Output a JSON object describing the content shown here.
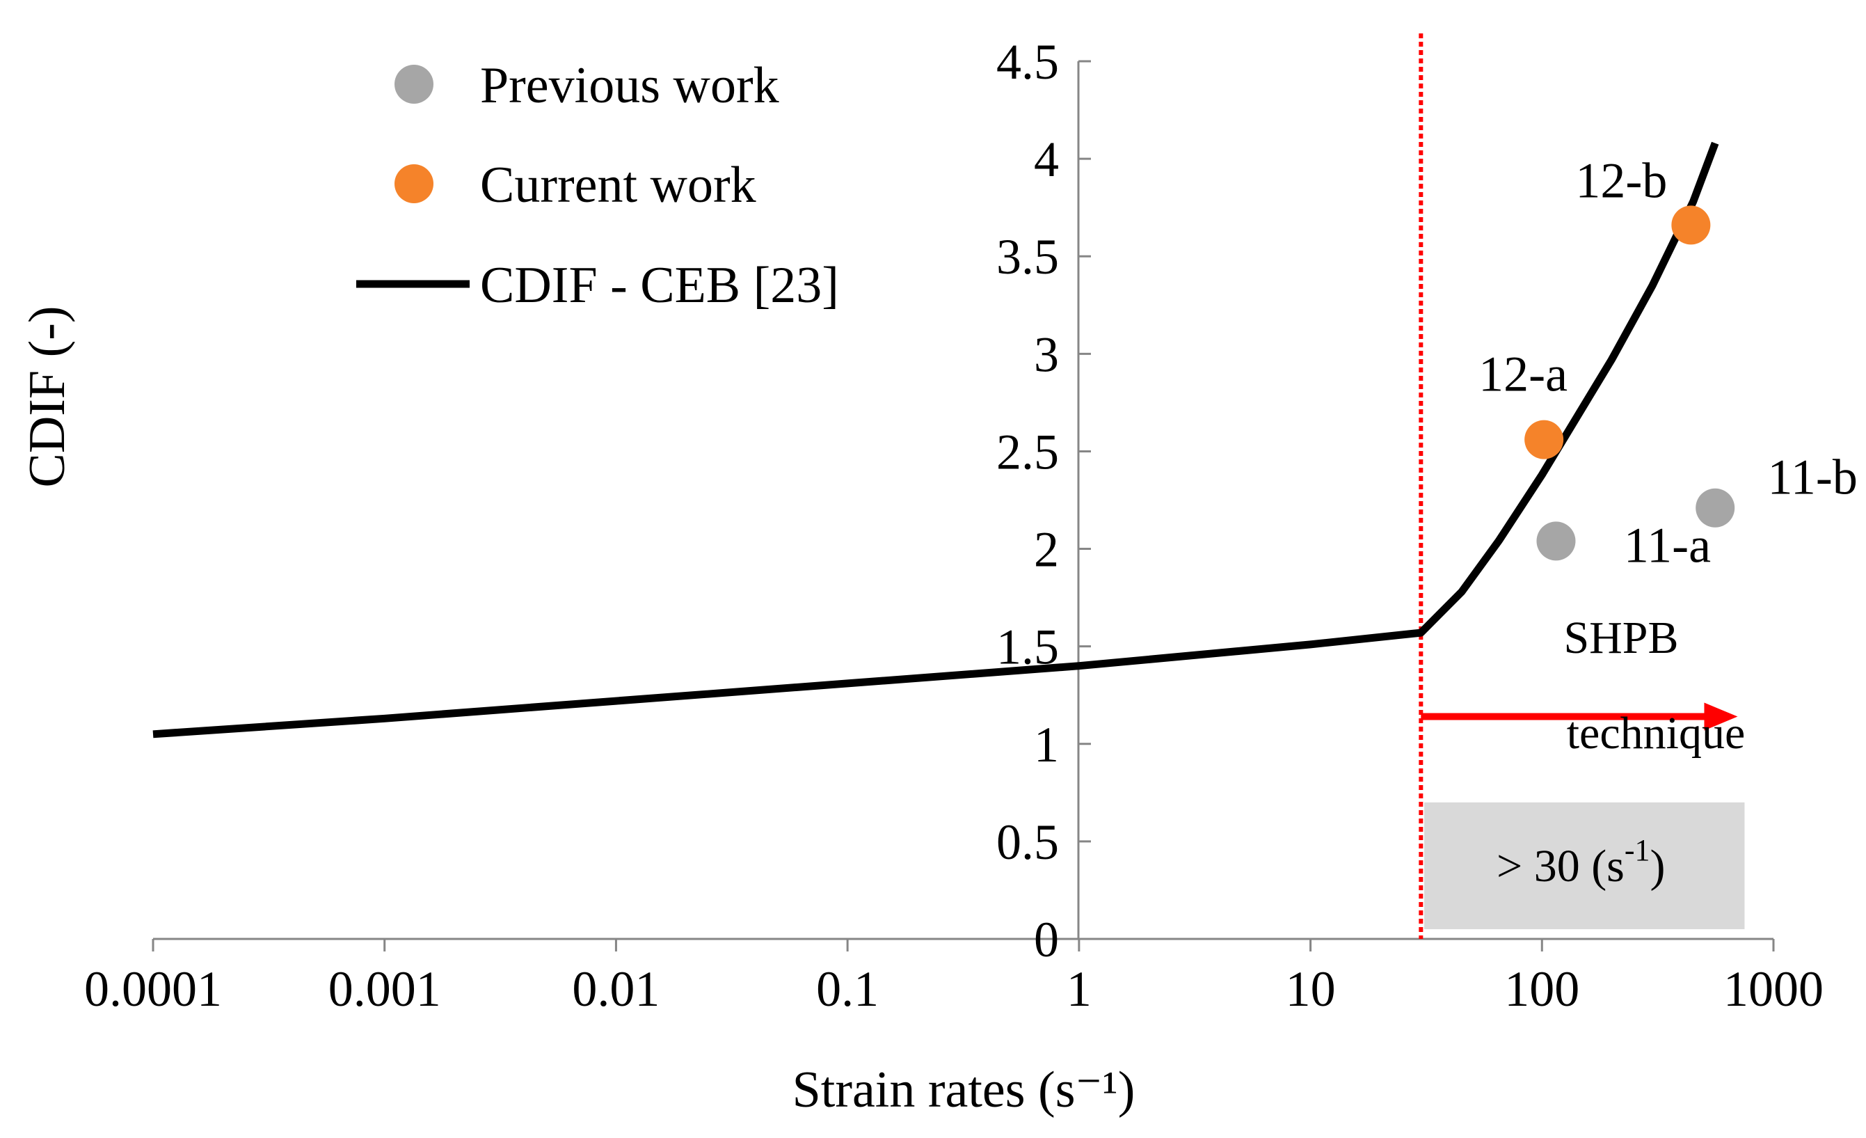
{
  "chart_data": {
    "type": "scatter",
    "title": "",
    "xlabel": "Strain rates (s⁻¹)",
    "ylabel": "CDIF (-)",
    "xscale": "log",
    "xlim": [
      0.0001,
      1000
    ],
    "ylim": [
      0,
      4.5
    ],
    "x_tick_labels": [
      "0.0001",
      "0.001",
      "0.01",
      "0.1",
      "1",
      "10",
      "100",
      "1000"
    ],
    "x_tick_values": [
      0.0001,
      0.001,
      0.01,
      0.1,
      1,
      10,
      100,
      1000
    ],
    "y_tick_labels": [
      "0",
      "0.5",
      "1",
      "1.5",
      "2",
      "2.5",
      "3",
      "3.5",
      "4",
      "4.5"
    ],
    "y_tick_values": [
      0,
      0.5,
      1,
      1.5,
      2,
      2.5,
      3,
      3.5,
      4,
      4.5
    ],
    "grid": false,
    "legend_position": "top-left",
    "series": [
      {
        "name": "Previous work",
        "kind": "scatter",
        "color": "#a6a6a6",
        "points": [
          {
            "x": 115,
            "y": 2.04,
            "label": "11-a"
          },
          {
            "x": 560,
            "y": 2.21,
            "label": "11-b"
          }
        ]
      },
      {
        "name": "Current work",
        "kind": "scatter",
        "color": "#f5832a",
        "points": [
          {
            "x": 102,
            "y": 2.56,
            "label": "12-a"
          },
          {
            "x": 440,
            "y": 3.66,
            "label": "12-b"
          }
        ]
      },
      {
        "name": "CDIF - CEB [23]",
        "kind": "line",
        "color": "#000000",
        "x": [
          0.0001,
          0.001,
          0.01,
          0.1,
          1,
          10,
          30,
          45,
          65,
          100,
          200,
          300,
          450,
          560
        ],
        "y": [
          1.05,
          1.13,
          1.22,
          1.31,
          1.4,
          1.51,
          1.57,
          1.78,
          2.04,
          2.38,
          2.97,
          3.35,
          3.78,
          4.08
        ]
      }
    ],
    "threshold": {
      "x": 30,
      "color": "#ff0000",
      "style": "dotted"
    },
    "annotations": {
      "method_line1": "SHPB",
      "method_line2": "technique",
      "arrow_from_x": 30,
      "arrow_to_x": 700,
      "arrow_y": 1.14,
      "arrow_color": "#ff0000",
      "range_box": {
        "x_from": 31,
        "x_to": 750,
        "y_from": 0.05,
        "y_to": 0.7,
        "color": "#d9d9d9"
      },
      "range_prefix": "> 30 (s",
      "range_exponent": "-1",
      "range_suffix": ")"
    }
  }
}
